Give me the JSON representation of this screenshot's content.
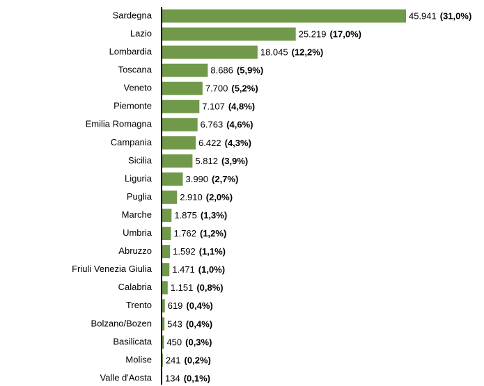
{
  "chart_data": {
    "type": "hbar",
    "categories": [
      "Sardegna",
      "Lazio",
      "Lombardia",
      "Toscana",
      "Veneto",
      "Piemonte",
      "Emilia Romagna",
      "Campania",
      "Sicilia",
      "Liguria",
      "Puglia",
      "Marche",
      "Umbria",
      "Abruzzo",
      "Friuli Venezia Giulia",
      "Calabria",
      "Trento",
      "Bolzano/Bozen",
      "Basilicata",
      "Molise",
      "Valle d'Aosta"
    ],
    "values": [
      45941,
      25219,
      18045,
      8686,
      7700,
      7107,
      6763,
      6422,
      5812,
      3990,
      2910,
      1875,
      1762,
      1592,
      1471,
      1151,
      619,
      543,
      450,
      241,
      134
    ],
    "value_labels": [
      "45.941",
      "25.219",
      "18.045",
      "8.686",
      "7.700",
      "7.107",
      "6.763",
      "6.422",
      "5.812",
      "3.990",
      "2.910",
      "1.875",
      "1.762",
      "1.592",
      "1.471",
      "1.151",
      "619",
      "543",
      "450",
      "241",
      "134"
    ],
    "share_labels": [
      "(31,0%)",
      "(17,0%)",
      "(12,2%)",
      "(5,9%)",
      "(5,2%)",
      "(4,8%)",
      "(4,6%)",
      "(4,3%)",
      "(3,9%)",
      "(2,7%)",
      "(2,0%)",
      "(1,3%)",
      "(1,2%)",
      "(1,1%)",
      "(1,0%)",
      "(0,8%)",
      "(0,4%)",
      "(0,4%)",
      "(0,3%)",
      "(0,2%)",
      "(0,1%)"
    ],
    "color": "#70994a",
    "share_color": "#3f6a80",
    "highlight_share_color": "#4a7a2e",
    "highlight_index": 0,
    "xlim": [
      0,
      46000
    ]
  }
}
